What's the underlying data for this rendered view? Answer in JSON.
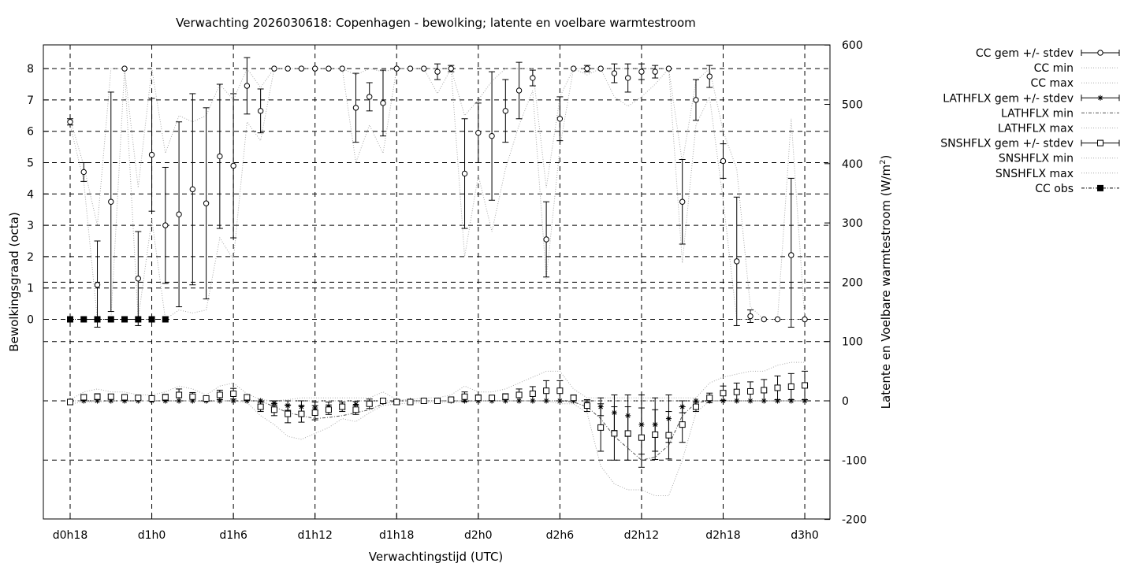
{
  "chart_data": {
    "type": "line",
    "title": "Verwachting 2026030618: Copenhagen - bewolking; latente en voelbare warmtestroom",
    "xlabel": "Verwachtingstijd (UTC)",
    "ylabel": "Bewolkingsgraad (octa)",
    "y2label_main": "Latente en Voelbare warmtestroom (W/m",
    "y2label_sup": "2",
    "y2label_end": ")",
    "x_ticks": [
      {
        "h": 0,
        "label": "d0h18"
      },
      {
        "h": 6,
        "label": "d1h0"
      },
      {
        "h": 12,
        "label": "d1h6"
      },
      {
        "h": 18,
        "label": "d1h12"
      },
      {
        "h": 24,
        "label": "d1h18"
      },
      {
        "h": 30,
        "label": "d2h0"
      },
      {
        "h": 36,
        "label": "d2h6"
      },
      {
        "h": 42,
        "label": "d2h12"
      },
      {
        "h": 48,
        "label": "d2h18"
      },
      {
        "h": 54,
        "label": "d3h0"
      }
    ],
    "xlim": [
      -2,
      56
    ],
    "ylim": [
      -6.4,
      8.8
    ],
    "y_ticks": [
      0,
      1,
      2,
      3,
      4,
      5,
      6,
      7,
      8
    ],
    "y2lim": [
      -200,
      600
    ],
    "y2_ticks": [
      -200,
      -100,
      0,
      100,
      200,
      300,
      400,
      500,
      600
    ],
    "grid": true,
    "legend_position": "outside-right",
    "legend": [
      {
        "label": "CC gem +/- stdev",
        "style": "errbar-circle"
      },
      {
        "label": "CC min",
        "style": "dotted"
      },
      {
        "label": "CC max",
        "style": "dotted"
      },
      {
        "label": "LATHFLX gem +/- stdev",
        "style": "errbar-star"
      },
      {
        "label": "LATHFLX min",
        "style": "dashdot"
      },
      {
        "label": "LATHFLX max",
        "style": "dotted"
      },
      {
        "label": "SNSHFLX gem +/- stdev",
        "style": "errbar-square"
      },
      {
        "label": "SNSHFLX min",
        "style": "dotted"
      },
      {
        "label": "SNSHFLX max",
        "style": "dotted"
      },
      {
        "label": "CC obs",
        "style": "filled-square-dashdot"
      }
    ],
    "cc": {
      "x": [
        0,
        1,
        2,
        3,
        4,
        5,
        6,
        7,
        8,
        9,
        10,
        11,
        12,
        13,
        14,
        15,
        16,
        17,
        18,
        19,
        20,
        21,
        22,
        23,
        24,
        25,
        26,
        27,
        28,
        29,
        30,
        31,
        32,
        33,
        34,
        35,
        36,
        37,
        38,
        39,
        40,
        41,
        42,
        43,
        44,
        45,
        46,
        47,
        48,
        49,
        50,
        51,
        52,
        53,
        54
      ],
      "mean": [
        6.3,
        4.7,
        1.1,
        3.75,
        8.0,
        1.3,
        5.25,
        3.0,
        3.35,
        4.15,
        3.7,
        5.2,
        4.9,
        7.45,
        6.65,
        8.0,
        8.0,
        8.0,
        8.0,
        8.0,
        8.0,
        6.75,
        7.1,
        6.9,
        8.0,
        8.0,
        8.0,
        7.9,
        8.0,
        4.65,
        5.95,
        5.85,
        6.65,
        7.3,
        7.7,
        2.55,
        6.4,
        8.0,
        8.0,
        8.0,
        7.85,
        7.7,
        7.9,
        7.9,
        8.0,
        3.75,
        7.0,
        7.75,
        5.05,
        1.85,
        0.1,
        0.0,
        0.0,
        2.05,
        0.0
      ],
      "sd": [
        0.1,
        0.3,
        1.4,
        3.5,
        0,
        1.5,
        1.8,
        1.85,
        2.95,
        3.05,
        3.05,
        2.3,
        2.3,
        0.9,
        0.7,
        0,
        0,
        0,
        0,
        0,
        0,
        1.1,
        0.45,
        1.05,
        0,
        0,
        0,
        0.25,
        0.1,
        1.75,
        0.95,
        2.05,
        1.0,
        0.9,
        0.25,
        1.2,
        0.7,
        0,
        0.1,
        0,
        0.3,
        0.45,
        0.25,
        0.2,
        0,
        1.35,
        0.65,
        0.35,
        0.55,
        2.05,
        0.2,
        0,
        0,
        2.45,
        0
      ],
      "min": [
        6.2,
        4.4,
        0.0,
        0.0,
        8.0,
        0.0,
        3.2,
        0.0,
        0.3,
        0.2,
        0.3,
        2.6,
        1.9,
        6.3,
        5.7,
        8.0,
        8.0,
        8.0,
        8.0,
        8.0,
        8.0,
        5.0,
        6.2,
        5.3,
        8.0,
        8.0,
        8.0,
        7.2,
        8.0,
        2.0,
        4.6,
        2.8,
        4.8,
        6.2,
        7.3,
        1.3,
        5.5,
        8.0,
        7.8,
        8.0,
        7.1,
        6.8,
        7.1,
        7.5,
        8.0,
        1.8,
        6.2,
        7.1,
        3.8,
        0.0,
        0.0,
        0.0,
        0.0,
        0.0,
        0.0
      ],
      "max": [
        6.4,
        4.9,
        3.0,
        8.0,
        8.0,
        4.2,
        8.0,
        5.3,
        6.5,
        6.3,
        6.5,
        7.5,
        7.0,
        8.0,
        7.4,
        8.0,
        8.0,
        8.0,
        8.0,
        8.0,
        8.0,
        7.8,
        8.0,
        7.9,
        8.0,
        8.0,
        8.0,
        8.0,
        8.0,
        6.5,
        7.0,
        7.6,
        8.0,
        8.0,
        8.0,
        4.2,
        7.1,
        8.0,
        8.0,
        8.0,
        8.0,
        8.0,
        8.0,
        8.0,
        8.0,
        5.0,
        7.6,
        8.0,
        6.0,
        4.8,
        0.4,
        0.0,
        0.0,
        6.4,
        0.0
      ]
    },
    "cc_obs": {
      "x": [
        0,
        1,
        2,
        3,
        4,
        5,
        6,
        7
      ],
      "values": [
        0,
        0,
        0,
        0,
        0,
        0,
        0,
        0
      ]
    },
    "lathflx": {
      "x": [
        0,
        1,
        2,
        3,
        4,
        5,
        6,
        7,
        8,
        9,
        10,
        11,
        12,
        13,
        14,
        15,
        16,
        17,
        18,
        19,
        20,
        21,
        22,
        23,
        24,
        25,
        26,
        27,
        28,
        29,
        30,
        31,
        32,
        33,
        34,
        35,
        36,
        37,
        38,
        39,
        40,
        41,
        42,
        43,
        44,
        45,
        46,
        47,
        48,
        49,
        50,
        51,
        52,
        53,
        54
      ],
      "mean": [
        0,
        0,
        0,
        0,
        0,
        0,
        0,
        0,
        0,
        0,
        0,
        0,
        0,
        0,
        0,
        -4,
        -8,
        -10,
        -12,
        -10,
        -8,
        -6,
        -4,
        -2,
        0,
        0,
        0,
        0,
        0,
        0,
        0,
        0,
        0,
        0,
        0,
        0,
        0,
        0,
        -5,
        -10,
        -20,
        -25,
        -40,
        -40,
        -30,
        -10,
        0,
        0,
        0,
        0,
        0,
        0,
        0,
        0,
        0
      ],
      "sd": [
        0,
        0,
        0,
        0,
        0,
        0,
        0,
        0,
        0,
        0,
        0,
        0,
        0,
        0,
        0,
        4,
        8,
        10,
        10,
        8,
        6,
        5,
        4,
        2,
        0,
        0,
        0,
        0,
        0,
        0,
        0,
        0,
        0,
        0,
        0,
        0,
        0,
        0,
        5,
        15,
        30,
        35,
        50,
        45,
        40,
        10,
        0,
        0,
        0,
        0,
        0,
        0,
        0,
        0,
        0
      ],
      "min": [
        0,
        0,
        0,
        0,
        0,
        0,
        0,
        0,
        0,
        0,
        0,
        0,
        0,
        0,
        0,
        -10,
        -20,
        -25,
        -30,
        -28,
        -25,
        -20,
        -15,
        -5,
        0,
        0,
        0,
        0,
        0,
        0,
        0,
        0,
        0,
        0,
        0,
        0,
        0,
        -2,
        -10,
        -30,
        -60,
        -80,
        -100,
        -95,
        -75,
        -25,
        -3,
        0,
        0,
        0,
        0,
        0,
        0,
        0,
        0
      ],
      "max": [
        0,
        0,
        0,
        0,
        0,
        0,
        0,
        0,
        0,
        0,
        0,
        0,
        0,
        0,
        0,
        0,
        0,
        0,
        0,
        0,
        0,
        0,
        0,
        0,
        0,
        0,
        0,
        0,
        0,
        0,
        0,
        0,
        0,
        0,
        0,
        0,
        0,
        0,
        0,
        0,
        0,
        0,
        0,
        0,
        0,
        0,
        0,
        0,
        0,
        0,
        0,
        0,
        0,
        0,
        0
      ]
    },
    "snshflx": {
      "x": [
        0,
        1,
        2,
        3,
        4,
        5,
        6,
        7,
        8,
        9,
        10,
        11,
        12,
        13,
        14,
        15,
        16,
        17,
        18,
        19,
        20,
        21,
        22,
        23,
        24,
        25,
        26,
        27,
        28,
        29,
        30,
        31,
        32,
        33,
        34,
        35,
        36,
        37,
        38,
        39,
        40,
        41,
        42,
        43,
        44,
        45,
        46,
        47,
        48,
        49,
        50,
        51,
        52,
        53,
        54
      ],
      "mean": [
        -2,
        6,
        7,
        7,
        6,
        5,
        4,
        6,
        10,
        7,
        4,
        10,
        12,
        6,
        -10,
        -15,
        -22,
        -22,
        -20,
        -15,
        -10,
        -15,
        -5,
        0,
        -2,
        -2,
        0,
        0,
        2,
        7,
        5,
        5,
        7,
        10,
        12,
        17,
        17,
        5,
        -8,
        -45,
        -55,
        -55,
        -62,
        -57,
        -58,
        -40,
        -10,
        5,
        13,
        15,
        16,
        18,
        22,
        24,
        26
      ],
      "sd": [
        3,
        4,
        5,
        4,
        4,
        3,
        3,
        5,
        10,
        7,
        3,
        8,
        9,
        4,
        8,
        10,
        15,
        14,
        12,
        8,
        8,
        8,
        8,
        4,
        3,
        3,
        3,
        3,
        3,
        8,
        5,
        4,
        5,
        10,
        12,
        17,
        17,
        5,
        10,
        40,
        45,
        45,
        50,
        42,
        40,
        30,
        8,
        8,
        12,
        15,
        16,
        18,
        20,
        22,
        24
      ],
      "min": [
        -5,
        -2,
        -2,
        0,
        0,
        0,
        0,
        0,
        0,
        0,
        -2,
        0,
        0,
        -3,
        -25,
        -40,
        -60,
        -65,
        -55,
        -45,
        -30,
        -35,
        -20,
        -8,
        -5,
        -4,
        -3,
        -3,
        -2,
        -2,
        0,
        0,
        0,
        0,
        0,
        0,
        -5,
        -5,
        -20,
        -110,
        -140,
        -150,
        -150,
        -160,
        -160,
        -100,
        -20,
        0,
        0,
        0,
        0,
        0,
        0,
        0,
        0
      ],
      "max": [
        2,
        15,
        20,
        15,
        15,
        10,
        10,
        15,
        25,
        20,
        10,
        25,
        30,
        12,
        2,
        0,
        2,
        5,
        5,
        5,
        5,
        5,
        5,
        15,
        2,
        2,
        5,
        5,
        10,
        25,
        15,
        15,
        20,
        30,
        40,
        50,
        50,
        20,
        5,
        5,
        5,
        5,
        5,
        5,
        5,
        5,
        5,
        30,
        40,
        45,
        50,
        50,
        60,
        65,
        65
      ]
    }
  }
}
